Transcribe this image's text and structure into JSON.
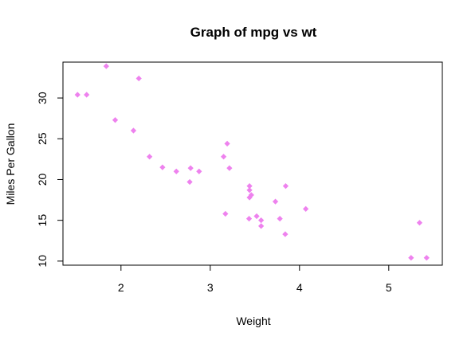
{
  "chart_data": {
    "type": "scatter",
    "title": "Graph of mpg vs wt",
    "xlabel": "Weight",
    "ylabel": "Miles Per Gallon",
    "xlim": [
      1.35,
      5.6
    ],
    "ylim": [
      9.5,
      34.4
    ],
    "xticks": [
      2,
      3,
      4,
      5
    ],
    "yticks": [
      10,
      15,
      20,
      25,
      30
    ],
    "grid": false,
    "legend": "none",
    "point_color": "#EE82EE",
    "point_shape": "diamond",
    "series": [
      {
        "x": [
          2.62,
          2.875,
          2.32,
          3.215,
          3.44,
          3.46,
          3.57,
          3.19,
          3.15,
          3.44,
          3.44,
          4.07,
          3.73,
          3.78,
          5.25,
          5.424,
          5.345,
          2.2,
          1.615,
          1.835,
          2.465,
          3.52,
          3.435,
          3.84,
          3.845,
          1.935,
          2.14,
          1.513,
          3.17,
          2.77,
          3.57,
          2.78
        ],
        "y": [
          21.0,
          21.0,
          22.8,
          21.4,
          18.7,
          18.1,
          14.3,
          24.4,
          22.8,
          19.2,
          17.8,
          16.4,
          17.3,
          15.2,
          10.4,
          10.4,
          14.7,
          32.4,
          30.4,
          33.9,
          21.5,
          15.5,
          15.2,
          13.3,
          19.2,
          27.3,
          26.0,
          30.4,
          15.8,
          19.7,
          15.0,
          21.4
        ]
      }
    ]
  }
}
